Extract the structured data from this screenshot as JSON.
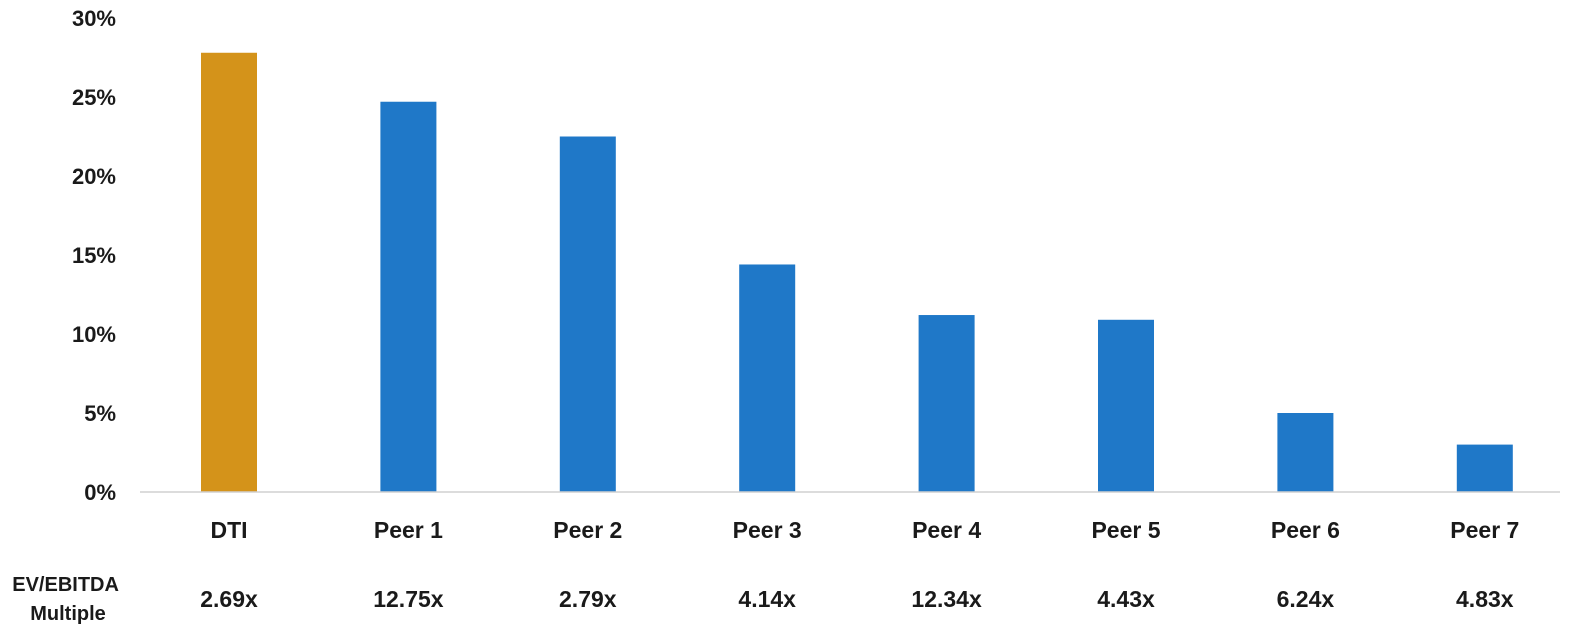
{
  "chart_data": {
    "type": "bar",
    "categories": [
      "DTI",
      "Peer 1",
      "Peer 2",
      "Peer 3",
      "Peer 4",
      "Peer 5",
      "Peer 6",
      "Peer 7"
    ],
    "values": [
      27.8,
      24.7,
      22.5,
      14.4,
      11.2,
      10.9,
      5.0,
      3.0
    ],
    "bar_colors": [
      "#D4931A",
      "#1F78C8",
      "#1F78C8",
      "#1F78C8",
      "#1F78C8",
      "#1F78C8",
      "#1F78C8",
      "#1F78C8"
    ],
    "ylim": [
      0,
      30
    ],
    "yticks": [
      0,
      5,
      10,
      15,
      20,
      25,
      30
    ],
    "ytick_labels": [
      "0%",
      "5%",
      "10%",
      "15%",
      "20%",
      "25%",
      "30%"
    ],
    "grid": false,
    "legend": "none",
    "row_label_lines": [
      "EV/EBITDA",
      "Multiple"
    ],
    "row_values": [
      "2.69x",
      "12.75x",
      "2.79x",
      "4.14x",
      "12.34x",
      "4.43x",
      "6.24x",
      "4.83x"
    ]
  }
}
